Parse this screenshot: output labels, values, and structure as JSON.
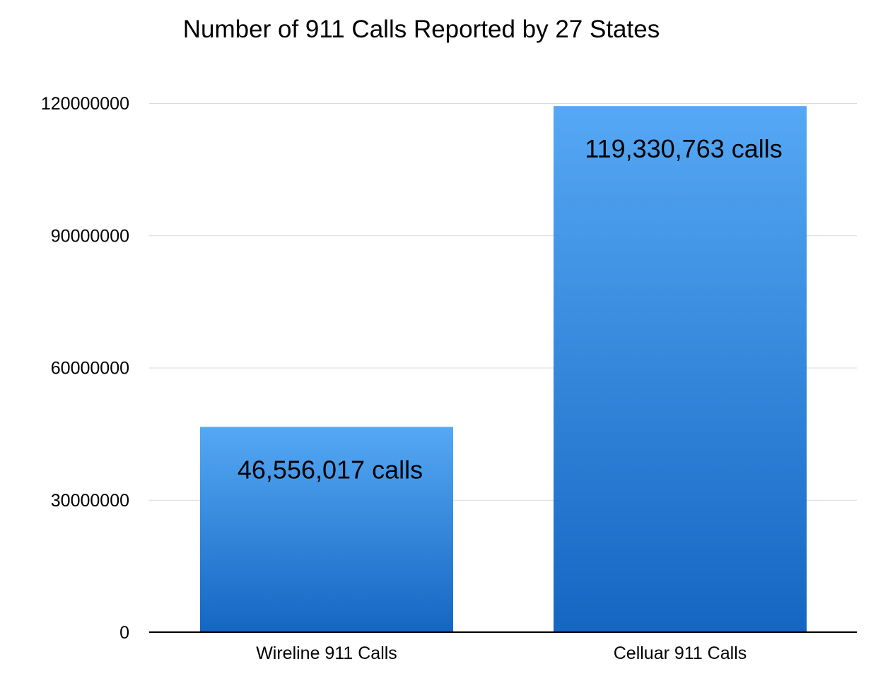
{
  "chart_data": {
    "type": "bar",
    "title": "Number of 911 Calls Reported by 27 States",
    "categories": [
      "Wireline 911 Calls",
      "Celluar 911 Calls"
    ],
    "values": [
      46556017,
      119330763
    ],
    "data_labels": [
      "46,556,017 calls",
      "119,330,763 calls"
    ],
    "xlabel": "",
    "ylabel": "",
    "ylim": [
      0,
      120000000
    ],
    "yticks": [
      0,
      30000000,
      60000000,
      90000000,
      120000000
    ],
    "ytick_labels": [
      "0",
      "30000000",
      "60000000",
      "90000000",
      "120000000"
    ],
    "grid": true,
    "legend": "none",
    "colors": {
      "bar_top": "#55a8f4",
      "bar_bottom": "#1566c2",
      "grid": "#d9d9d9",
      "axis": "#000000"
    }
  }
}
